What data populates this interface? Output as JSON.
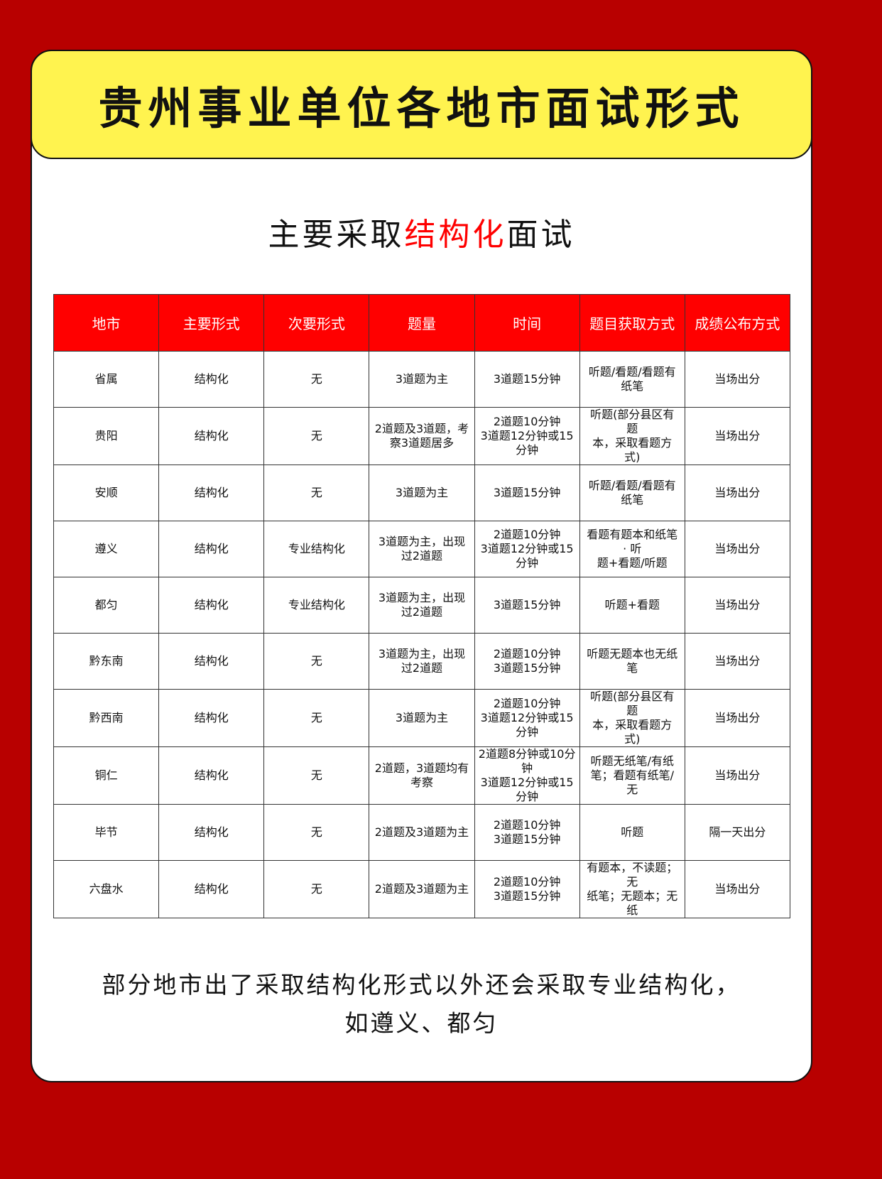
{
  "header": {
    "title": "贵州事业单位各地市面试形式"
  },
  "subtitle": {
    "before": "主要采取",
    "highlight": "结构化",
    "after": "面试",
    "highlight_color": "#ff0000"
  },
  "table": {
    "columns": [
      "地市",
      "主要形式",
      "次要形式",
      "题量",
      "时间",
      "题目获取方式",
      "成绩公布方式"
    ],
    "rows": [
      [
        "省属",
        "结构化",
        "无",
        "3道题为主",
        "3道题15分钟",
        "听题/看题/看题有\n纸笔",
        "当场出分"
      ],
      [
        "贵阳",
        "结构化",
        "无",
        "2道题及3道题，考\n察3道题居多",
        "2道题10分钟\n3道题12分钟或15\n分钟",
        "听题(部分县区有\n题\n本，采取看题方\n式)",
        "当场出分"
      ],
      [
        "安顺",
        "结构化",
        "无",
        "3道题为主",
        "3道题15分钟",
        "听题/看题/看题有\n纸笔",
        "当场出分"
      ],
      [
        "遵义",
        "结构化",
        "专业结构化",
        "3道题为主，出现\n过2道题",
        "2道题10分钟\n3道题12分钟或15\n分钟",
        "看题有题本和纸笔\n· 听\n题+看题/听题",
        "当场出分"
      ],
      [
        "都匀",
        "结构化",
        "专业结构化",
        "3道题为主，出现\n过2道题",
        "3道题15分钟",
        "听题+看题",
        "当场出分"
      ],
      [
        "黔东南",
        "结构化",
        "无",
        "3道题为主，出现\n过2道题",
        "2道题10分钟\n3道题15分钟",
        "听题无题本也无纸\n笔",
        "当场出分"
      ],
      [
        "黔西南",
        "结构化",
        "无",
        "3道题为主",
        "2道题10分钟\n3道题12分钟或15\n分钟",
        "听题(部分县区有\n题\n本，采取看题方\n式)",
        "当场出分"
      ],
      [
        "铜仁",
        "结构化",
        "无",
        "2道题，3道题均有\n考察",
        "2道题8分钟或10分\n钟\n3道题12分钟或15\n分钟",
        "听题无纸笔/有纸\n笔；看题有纸笔/\n无",
        "当场出分"
      ],
      [
        "毕节",
        "结构化",
        "无",
        "2道题及3道题为主",
        "2道题10分钟\n3道题15分钟",
        "听题",
        "隔一天出分"
      ],
      [
        "六盘水",
        "结构化",
        "无",
        "2道题及3道题为主",
        "2道题10分钟\n3道题15分钟\n ",
        "有题本，不读题；\n无\n纸笔；无题本；无\n纸",
        "当场出分"
      ]
    ]
  },
  "footer": {
    "line1": "部分地市出了采取结构化形式以外还会采取专业结构化，",
    "line2": "如遵义、都匀"
  },
  "colors": {
    "background": "#b80000",
    "banner": "#fff34f",
    "table_header": "#ff0000"
  }
}
